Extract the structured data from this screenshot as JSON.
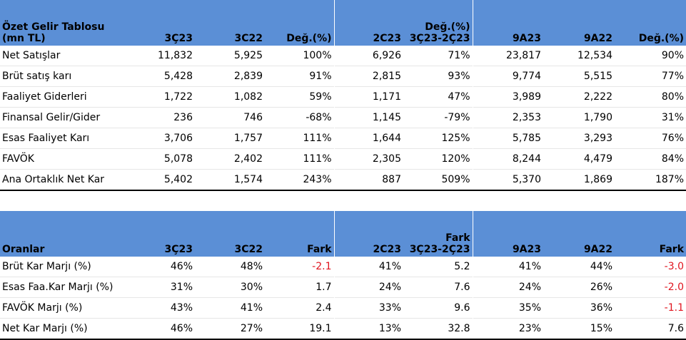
{
  "income": {
    "title_line1": "Özet Gelir Tablosu",
    "title_line2": "(mn TL)",
    "headers": {
      "c1": "3Ç23",
      "c2": "3C22",
      "c3": "Değ.(%)",
      "c4": "2C23",
      "c5_line1": "Değ.(%)",
      "c5_line2": "3Ç23-2Ç23",
      "c6": "9A23",
      "c7": "9A22",
      "c8": "Değ.(%)"
    },
    "rows": [
      {
        "label": "Net Satışlar",
        "v": [
          "11,832",
          "5,925",
          "100%",
          "6,926",
          "71%",
          "23,817",
          "12,534",
          "90%"
        ]
      },
      {
        "label": "Brüt satış karı",
        "v": [
          "5,428",
          "2,839",
          "91%",
          "2,815",
          "93%",
          "9,774",
          "5,515",
          "77%"
        ]
      },
      {
        "label": "Faaliyet Giderleri",
        "v": [
          "1,722",
          "1,082",
          "59%",
          "1,171",
          "47%",
          "3,989",
          "2,222",
          "80%"
        ]
      },
      {
        "label": "Finansal Gelir/Gider",
        "v": [
          "236",
          "746",
          "-68%",
          "1,145",
          "-79%",
          "2,353",
          "1,790",
          "31%"
        ]
      },
      {
        "label": "Esas Faaliyet Karı",
        "v": [
          "3,706",
          "1,757",
          "111%",
          "1,644",
          "125%",
          "5,785",
          "3,293",
          "76%"
        ]
      },
      {
        "label": "FAVÖK",
        "v": [
          "5,078",
          "2,402",
          "111%",
          "2,305",
          "120%",
          "8,244",
          "4,479",
          "84%"
        ]
      },
      {
        "label": "Ana Ortaklık Net Kar",
        "v": [
          "5,402",
          "1,574",
          "243%",
          "887",
          "509%",
          "5,370",
          "1,869",
          "187%"
        ]
      }
    ]
  },
  "ratios": {
    "title": "Oranlar",
    "headers": {
      "c1": "3Ç23",
      "c2": "3C22",
      "c3": "Fark",
      "c4": "2C23",
      "c5_line1": "Fark",
      "c5_line2": "3Ç23-2Ç23",
      "c6": "9A23",
      "c7": "9A22",
      "c8": "Fark"
    },
    "rows": [
      {
        "label": "Brüt Kar Marjı (%)",
        "v": [
          "46%",
          "48%",
          "-2.1",
          "41%",
          "5.2",
          "41%",
          "44%",
          "-3.0"
        ]
      },
      {
        "label": "Esas Faa.Kar Marjı (%)",
        "v": [
          "31%",
          "30%",
          "1.7",
          "24%",
          "7.6",
          "24%",
          "26%",
          "-2.0"
        ]
      },
      {
        "label": "FAVÖK Marjı (%)",
        "v": [
          "43%",
          "41%",
          "2.4",
          "33%",
          "9.6",
          "35%",
          "36%",
          "-1.1"
        ]
      },
      {
        "label": "Net Kar Marjı (%)",
        "v": [
          "46%",
          "27%",
          "19.1",
          "13%",
          "32.8",
          "23%",
          "15%",
          "7.6"
        ]
      }
    ]
  },
  "colors": {
    "header_bg": "#5b8fd6",
    "negative_text": "#e0141e"
  }
}
